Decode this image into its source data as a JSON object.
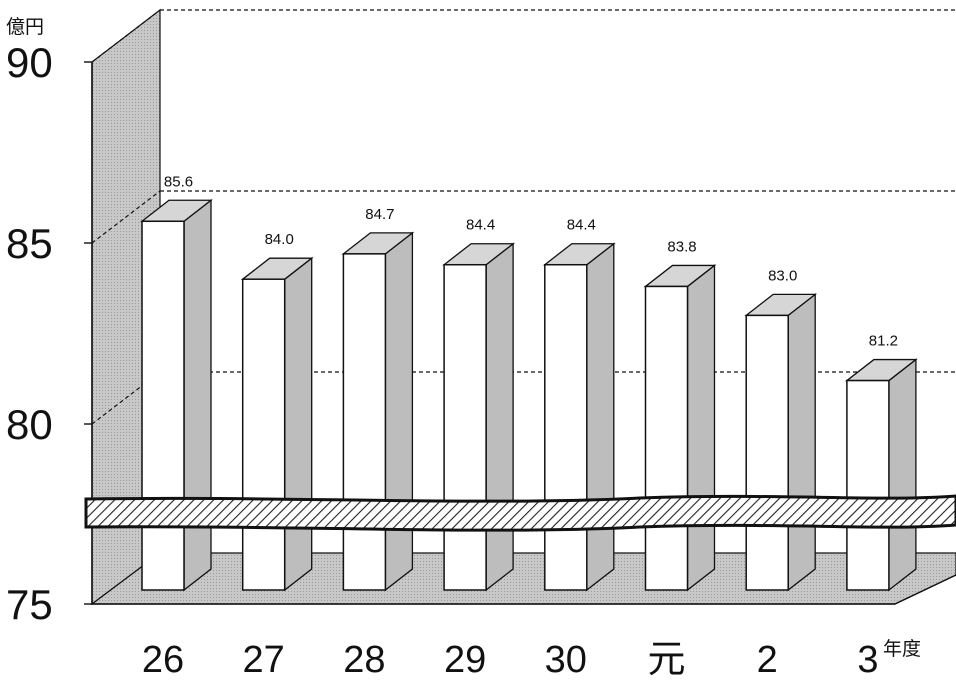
{
  "chart_data": {
    "type": "bar",
    "title": "",
    "ylabel": "億円",
    "xlabel": "年度",
    "ylim": [
      75,
      90
    ],
    "yticks": [
      75,
      80,
      85,
      90
    ],
    "categories": [
      "26",
      "27",
      "28",
      "29",
      "30",
      "元",
      "2",
      "3"
    ],
    "values": [
      85.6,
      84.0,
      84.7,
      84.4,
      84.4,
      83.8,
      83.0,
      81.2
    ],
    "value_labels": [
      "85.6",
      "84.0",
      "84.7",
      "84.4",
      "84.4",
      "83.8",
      "83.0",
      "81.2"
    ],
    "axis_break": true,
    "grid": "dashed",
    "colors": {
      "bar_front": "#ffffff",
      "bar_side": "#bdbdbd",
      "bar_top": "#d6d6d6",
      "wall": "#c4c4c4",
      "floor": "#b0b0b0",
      "outline": "#111111"
    }
  }
}
